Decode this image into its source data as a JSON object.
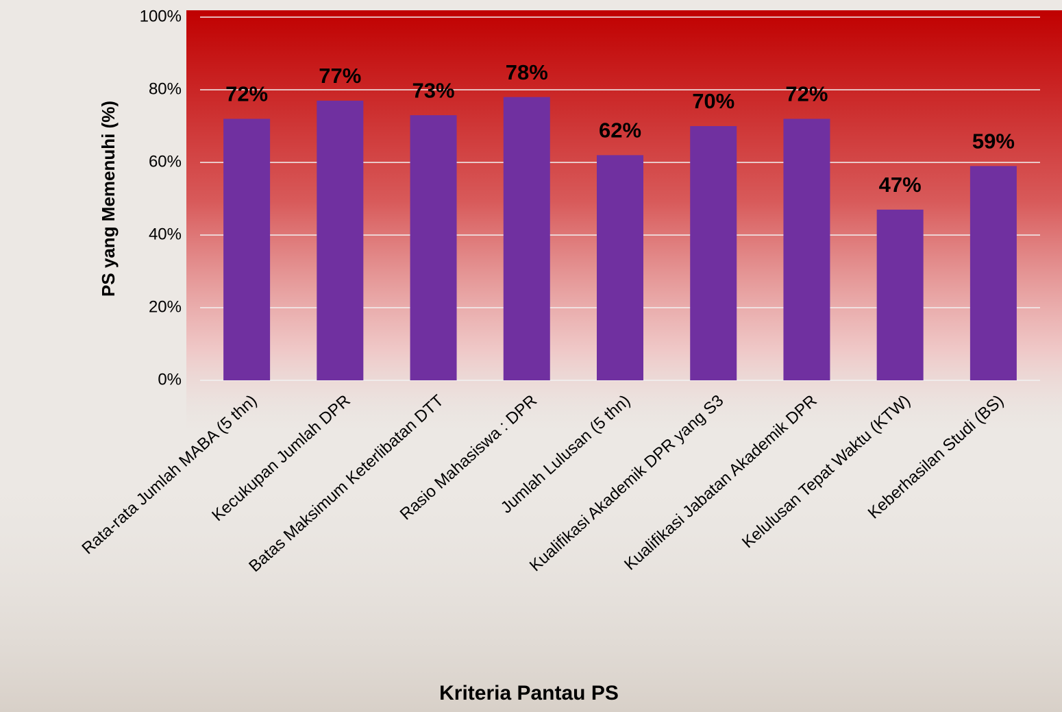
{
  "chart_data": {
    "type": "bar",
    "x_label": "Kriteria Pantau PS",
    "y_label": "PS yang Memenuhi (%)",
    "categories": [
      "Rata-rata Jumlah MABA (5 thn)",
      "Kecukupan Jumlah DPR",
      "Batas Maksimum Keterlibatan DTT",
      "Rasio Mahasiswa : DPR",
      "Jumlah Lulusan (5 thn)",
      "Kualifikasi Akademik DPR yang S3",
      "Kualifikasi Jabatan Akademik DPR",
      "Kelulusan Tepat Waktu (KTW)",
      "Keberhasilan Studi (BS)"
    ],
    "values": [
      72,
      77,
      73,
      78,
      62,
      70,
      72,
      47,
      59
    ],
    "value_labels": [
      "72%",
      "77%",
      "73%",
      "78%",
      "62%",
      "70%",
      "72%",
      "47%",
      "59%"
    ],
    "color": "#7030a0",
    "ylim": [
      0,
      100
    ],
    "yticks": [
      {
        "value": 0,
        "label": "0%"
      },
      {
        "value": 20,
        "label": "20%"
      },
      {
        "value": 40,
        "label": "40%"
      },
      {
        "value": 60,
        "label": "60%"
      },
      {
        "value": 80,
        "label": "80%"
      },
      {
        "value": 100,
        "label": "100%"
      }
    ],
    "grid": true
  }
}
